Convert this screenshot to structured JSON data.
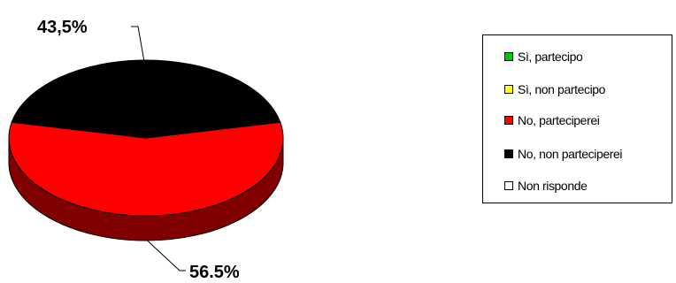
{
  "chart_data": {
    "type": "pie",
    "style": "3d-tilted",
    "categories": [
      "Sì, partecipo",
      "Sì, non partecipo",
      "No, parteciperei",
      "No, non parteciperei",
      "Non risponde"
    ],
    "values": [
      0,
      0,
      56.5,
      43.5,
      0
    ],
    "data_labels": [
      "",
      "",
      "56.5%",
      "43,5%",
      ""
    ],
    "colors": [
      "#00cc00",
      "#ffff00",
      "#ff0000",
      "#000000",
      "#ffffff"
    ],
    "legend_position": "right"
  },
  "legend": {
    "items": [
      {
        "label": "Sì, partecipo",
        "color": "#00cc00"
      },
      {
        "label": "Sì, non partecipo",
        "color": "#ffff00"
      },
      {
        "label": "No, parteciperei",
        "color": "#ff0000"
      },
      {
        "label": "No, non parteciperei",
        "color": "#000000"
      },
      {
        "label": "Non risponde",
        "color": "#ffffff"
      }
    ]
  },
  "labels": {
    "top": "43,5%",
    "bottom": "56.5%"
  }
}
